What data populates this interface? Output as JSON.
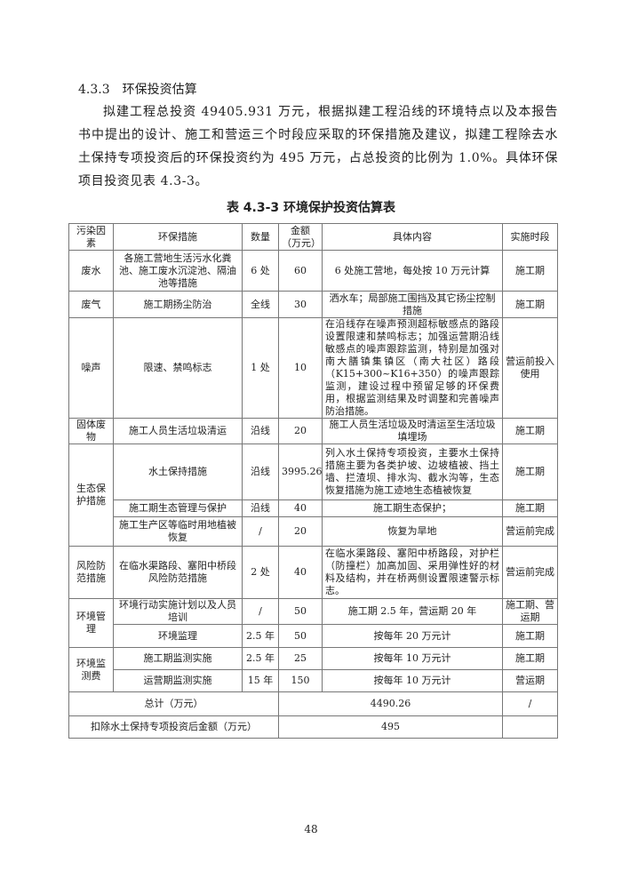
{
  "section": {
    "number": "4.3.3",
    "title": "环保投资估算"
  },
  "paragraph": "拟建工程总投资 49405.931 万元，根据拟建工程沿线的环境特点以及本报告书中提出的设计、施工和营运三个时段应采取的环保措施及建议，拟建工程除去水土保持专项投资后的环保投资约为 495 万元，占总投资的比例为 1.0%。具体环保项目投资见表 4.3-3。",
  "table": {
    "caption": "表 4.3-3 环境保护投资估算表",
    "headers": [
      "污染因素",
      "环保措施",
      "数量",
      "金额（万元）",
      "具体内容",
      "实施时段"
    ],
    "groups": [
      {
        "category": "废水",
        "items": [
          {
            "measure": "各施工营地生活污水化粪池、施工废水沉淀池、隔油池等措施",
            "qty": "6 处",
            "amount": "60",
            "content": "6 处施工营地，每处按 10 万元计算",
            "period": "施工期"
          }
        ]
      },
      {
        "category": "废气",
        "items": [
          {
            "measure": "施工期扬尘防治",
            "qty": "全线",
            "amount": "30",
            "content": "洒水车；局部施工围挡及其它扬尘控制措施",
            "period": "施工期"
          }
        ]
      },
      {
        "category": "噪声",
        "items": [
          {
            "measure": "限速、禁鸣标志",
            "qty": "1 处",
            "amount": "10",
            "content": "在沿线存在噪声预测超标敏感点的路段设置限速和禁鸣标志；加强运营期沿线敏感点的噪声跟踪监测，特别是加强对南大膳镇集镇区（南大社区）路段（K15+300~K16+350）的噪声跟踪监测，建设过程中预留足够的环保费用，根据监测结果及时调整和完善噪声防治措施。",
            "period": "营运前投入使用"
          }
        ]
      },
      {
        "category": "固体废物",
        "items": [
          {
            "measure": "施工人员生活垃圾清运",
            "qty": "沿线",
            "amount": "20",
            "content": "施工人员生活垃圾及时清运至生活垃圾填埋场",
            "period": "施工期"
          }
        ]
      },
      {
        "category": "生态保护措施",
        "items": [
          {
            "measure": "水土保持措施",
            "qty": "沿线",
            "amount": "3995.26",
            "content": "列入水土保持专项投资，主要水土保持措施主要为各类护坡、边坡植被、挡土墙、拦渣坝、排水沟、截水沟等，生态恢复措施为施工迹地生态植被恢复",
            "period": "施工期"
          },
          {
            "measure": "施工期生态管理与保护",
            "qty": "沿线",
            "amount": "40",
            "content": "施工期生态保护；",
            "period": "施工期"
          },
          {
            "measure": "施工生产区等临时用地植被恢复",
            "qty": "/",
            "amount": "20",
            "content": "恢复为旱地",
            "period": "营运前完成"
          }
        ]
      },
      {
        "category": "风险防范措施",
        "items": [
          {
            "measure": "在临水渠路段、塞阳中桥段风险防范措施",
            "qty": "2 处",
            "amount": "40",
            "content": "在临水渠路段、塞阳中桥路段，对护栏（防撞栏）加高加固、采用弹性好的材料及结构，并在桥两侧设置限速警示标志。",
            "period": "营运前完成"
          }
        ]
      },
      {
        "category": "环境管理",
        "items": [
          {
            "measure": "环境行动实施计划以及人员培训",
            "qty": "/",
            "amount": "50",
            "content": "施工期 2.5 年，营运期 20 年",
            "period": "施工期、营运期"
          },
          {
            "measure": "环境监理",
            "qty": "2.5 年",
            "amount": "50",
            "content": "按每年 20 万元计",
            "period": "施工期"
          }
        ]
      },
      {
        "category": "环境监测费",
        "items": [
          {
            "measure": "施工期监测实施",
            "qty": "2.5 年",
            "amount": "25",
            "content": "按每年 10 万元计",
            "period": "施工期"
          },
          {
            "measure": "运营期监测实施",
            "qty": "15 年",
            "amount": "150",
            "content": "按每年 10 万元计",
            "period": "营运期"
          }
        ]
      }
    ],
    "total": {
      "label": "总计（万元）",
      "value": "4490.26",
      "period": "/"
    },
    "net": {
      "label": "扣除水土保持专项投资后金额（万元）",
      "value": "495",
      "period": ""
    }
  },
  "page_number": "48"
}
